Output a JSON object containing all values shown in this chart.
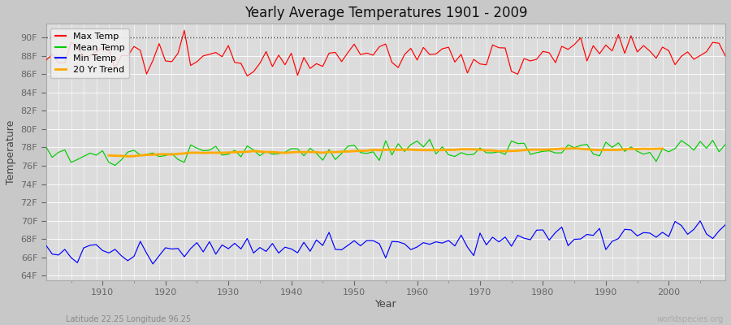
{
  "title": "Yearly Average Temperatures 1901 - 2009",
  "ylabel": "Temperature",
  "xlabel": "Year",
  "footnote_left": "Latitude 22.25 Longitude 96.25",
  "footnote_right": "worldspecies.org",
  "fig_bg_color": "#c8c8c8",
  "plot_bg_color": "#dcdcdc",
  "grid_color": "#ffffff",
  "ytick_labels": [
    "64F",
    "66F",
    "68F",
    "70F",
    "72F",
    "74F",
    "76F",
    "78F",
    "80F",
    "82F",
    "84F",
    "86F",
    "88F",
    "90F"
  ],
  "ytick_values": [
    64,
    66,
    68,
    70,
    72,
    74,
    76,
    78,
    80,
    82,
    84,
    86,
    88,
    90
  ],
  "ylim": [
    63.5,
    91.5
  ],
  "xlim": [
    1901,
    2009
  ],
  "xtick_values": [
    1910,
    1920,
    1930,
    1940,
    1950,
    1960,
    1970,
    1980,
    1990,
    2000
  ],
  "dotted_line_y": 90,
  "colors": {
    "max": "#ff0000",
    "mean": "#00cc00",
    "min": "#0000ff",
    "trend": "#ffaa00"
  },
  "legend_labels": [
    "Max Temp",
    "Mean Temp",
    "Min Temp",
    "20 Yr Trend"
  ]
}
